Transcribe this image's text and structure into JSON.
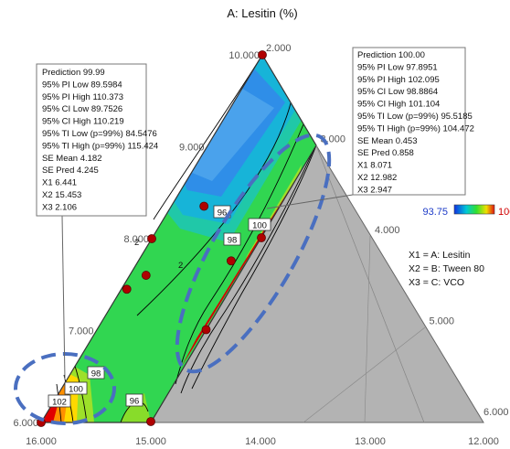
{
  "chart_data": {
    "type": "ternary-contour",
    "title": "A: Lesitin (%)",
    "colors": {
      "region_fill": "#b3b3b3",
      "contour_line": "#000000",
      "design_point": "#b00000",
      "callout_ring": "#4a6fc0",
      "colorbar_low_label": "#1e3cc8",
      "colorbar_high_label": "#d00000"
    },
    "axes": {
      "A_ticks": [
        "2.000",
        "3.000",
        "4.000",
        "5.000",
        "6.000"
      ],
      "B_ticks": [
        "16.000",
        "15.000",
        "14.000",
        "13.000",
        "12.000"
      ],
      "C_ticks": [
        "10.000",
        "9.000",
        "8.000",
        "7.000",
        "6.000"
      ],
      "edge_labels": [
        "2",
        "2"
      ]
    },
    "colorbar": {
      "min": 93.75,
      "max": "100"
    },
    "contour_labels": [
      "96",
      "98",
      "100",
      "98",
      "100",
      "102",
      "96"
    ],
    "legend": [
      "X1 = A: Lesitin",
      "X2 = B: Tween 80",
      "X3 = C: VCO"
    ],
    "prediction_boxes": [
      {
        "lines": [
          "Prediction  99.99",
          "95% PI Low  89.5984",
          "95% PI High  110.373",
          "95% CI Low  89.7526",
          "95% CI High  110.219",
          "95% TI Low (p=99%)  84.5476",
          "95% TI High (p=99%)  115.424",
          "SE Mean  4.182",
          "SE Pred  4.245",
          "X1  6.441",
          "X2  15.453",
          "X3  2.106"
        ]
      },
      {
        "lines": [
          "Prediction  100.00",
          "95% PI Low  97.8951",
          "95% PI High  102.095",
          "95% CI Low  98.8864",
          "95% CI High  101.104",
          "95% TI Low (p=99%)  95.5185",
          "95% TI High (p=99%)  104.472",
          "SE Mean  0.453",
          "SE Pred  0.858",
          "X1  8.071",
          "X2  12.982",
          "X3  2.947"
        ]
      }
    ],
    "design_points": [
      {
        "C": 10.0,
        "A": 2.0
      },
      {
        "C": 9.0,
        "A": 3.0
      },
      {
        "C": 8.0,
        "A": 2.0
      },
      {
        "C": 8.0,
        "A": 3.0
      },
      {
        "C": 7.0,
        "A": 3.0
      },
      {
        "C": 6.0,
        "A": 2.0
      },
      {
        "C": 8.65,
        "A": 2.3
      },
      {
        "C": 7.75,
        "A": 2.15
      },
      {
        "C": 8.6,
        "A": 2.85
      },
      {
        "C": 7.5,
        "A": 2.05
      }
    ]
  }
}
